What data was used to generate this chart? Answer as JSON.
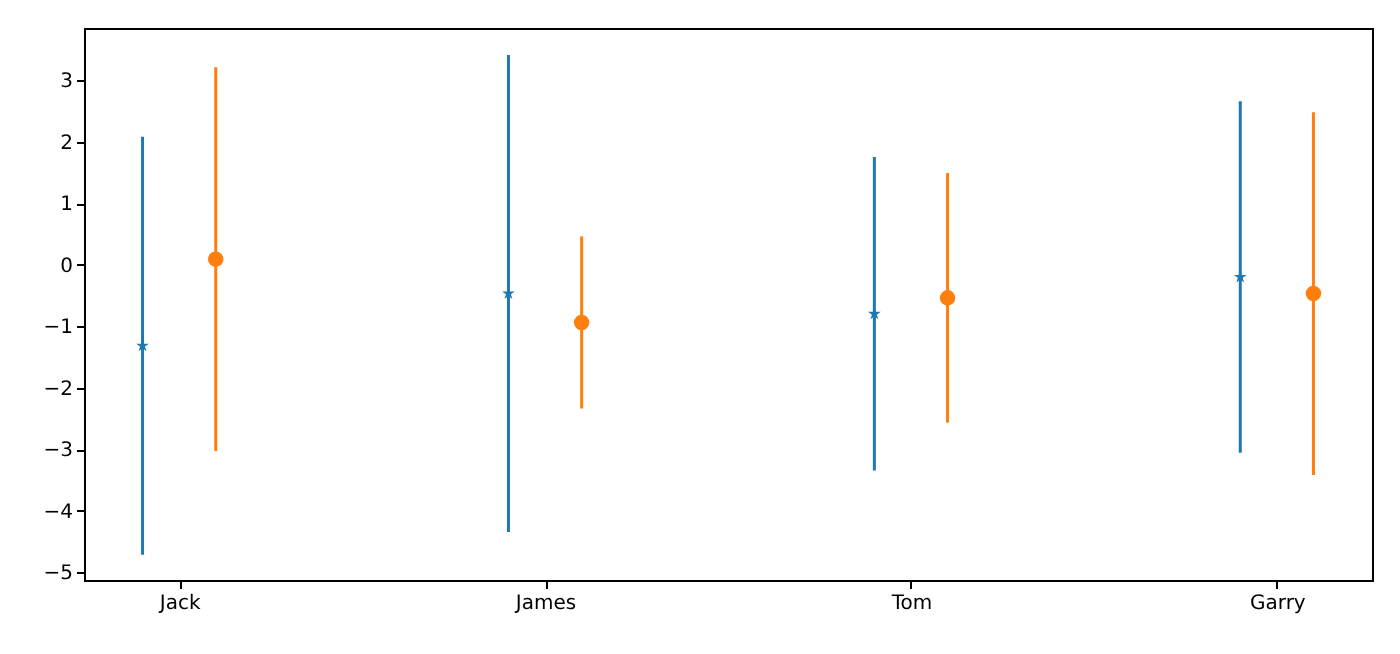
{
  "chart_data": {
    "type": "scatter",
    "categories": [
      "Jack",
      "James",
      "Tom",
      "Garry"
    ],
    "series": [
      {
        "color": "#1f77b4",
        "marker": "star",
        "values": [
          -1.32,
          -0.47,
          -0.8,
          -0.2
        ],
        "errors": [
          3.4,
          3.88,
          2.55,
          2.86
        ]
      },
      {
        "color": "#ff7f0e",
        "marker": "circle",
        "values": [
          0.09,
          -0.94,
          -0.54,
          -0.47
        ],
        "errors": [
          3.12,
          1.4,
          2.03,
          2.95
        ]
      }
    ],
    "ylim": [
      -5.13,
      3.85
    ],
    "yticks": [
      -5,
      -4,
      -3,
      -2,
      -1,
      0,
      1,
      2,
      3
    ]
  }
}
